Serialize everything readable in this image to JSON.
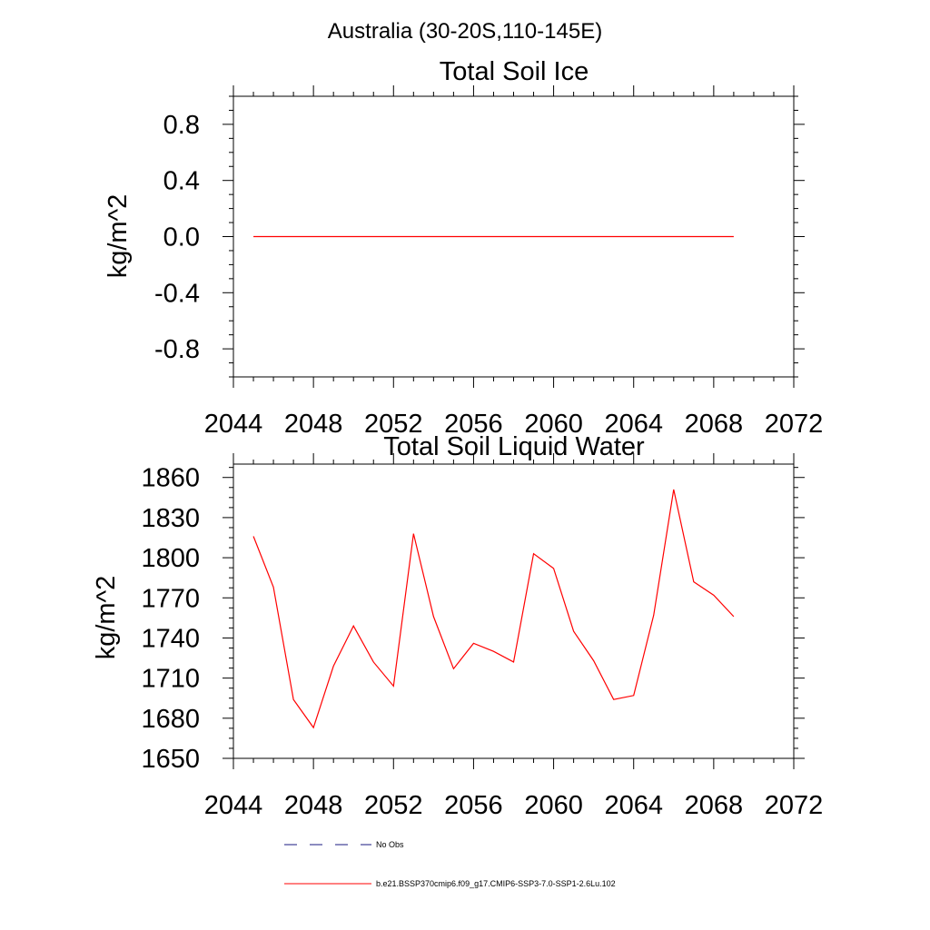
{
  "page_title": "Australia (30-20S,110-145E)",
  "colors": {
    "model": "#ff0000",
    "obs": "#1a1a80",
    "axis": "#000000"
  },
  "chart_data": [
    {
      "type": "line",
      "title": "Total Soil Ice",
      "ylabel": "kg/m^2",
      "xlim": [
        2044,
        2072
      ],
      "ylim": [
        -1.0,
        1.0
      ],
      "xticks": [
        2044,
        2048,
        2052,
        2056,
        2060,
        2064,
        2068,
        2072
      ],
      "xtick_labels": [
        "2044",
        "2048",
        "2052",
        "2056",
        "2060",
        "2064",
        "2068",
        "2072"
      ],
      "yticks": [
        -0.8,
        -0.4,
        0.0,
        0.4,
        0.8
      ],
      "ytick_labels": [
        "-0.8",
        "-0.4",
        "0.0",
        "0.4",
        "0.8"
      ],
      "x": [
        2045,
        2046,
        2047,
        2048,
        2049,
        2050,
        2051,
        2052,
        2053,
        2054,
        2055,
        2056,
        2057,
        2058,
        2059,
        2060,
        2061,
        2062,
        2063,
        2064,
        2065,
        2066,
        2067,
        2068,
        2069
      ],
      "series": [
        {
          "values": [
            0,
            0,
            0,
            0,
            0,
            0,
            0,
            0,
            0,
            0,
            0,
            0,
            0,
            0,
            0,
            0,
            0,
            0,
            0,
            0,
            0,
            0,
            0,
            0,
            0
          ]
        }
      ]
    },
    {
      "type": "line",
      "title": "Total Soil Liquid Water",
      "ylabel": "kg/m^2",
      "xlim": [
        2044,
        2072
      ],
      "ylim": [
        1650,
        1870
      ],
      "xticks": [
        2044,
        2048,
        2052,
        2056,
        2060,
        2064,
        2068,
        2072
      ],
      "xtick_labels": [
        "2044",
        "2048",
        "2052",
        "2056",
        "2060",
        "2064",
        "2068",
        "2072"
      ],
      "yticks": [
        1650,
        1680,
        1710,
        1740,
        1770,
        1800,
        1830,
        1860
      ],
      "ytick_labels": [
        "1650",
        "1680",
        "1710",
        "1740",
        "1770",
        "1800",
        "1830",
        "1860"
      ],
      "x": [
        2045,
        2046,
        2047,
        2048,
        2049,
        2050,
        2051,
        2052,
        2053,
        2054,
        2055,
        2056,
        2057,
        2058,
        2059,
        2060,
        2061,
        2062,
        2063,
        2064,
        2065,
        2066,
        2067,
        2068,
        2069
      ],
      "series": [
        {
          "values": [
            1816,
            1778,
            1694,
            1673,
            1719,
            1749,
            1722,
            1704,
            1818,
            1756,
            1717,
            1736,
            1730,
            1722,
            1803,
            1792,
            1745,
            1723,
            1694,
            1697,
            1757,
            1851,
            1782,
            1772,
            1756
          ]
        }
      ]
    }
  ],
  "legend": {
    "placement": "bottom",
    "entries": [
      {
        "label": "No Obs",
        "style": "dashed",
        "color": "#1a1a80"
      },
      {
        "label": "b.e21.BSSP370cmip6.f09_g17.CMIP6-SSP3-7.0-SSP1-2.6Lu.102",
        "style": "solid",
        "color": "#ff0000"
      }
    ]
  }
}
